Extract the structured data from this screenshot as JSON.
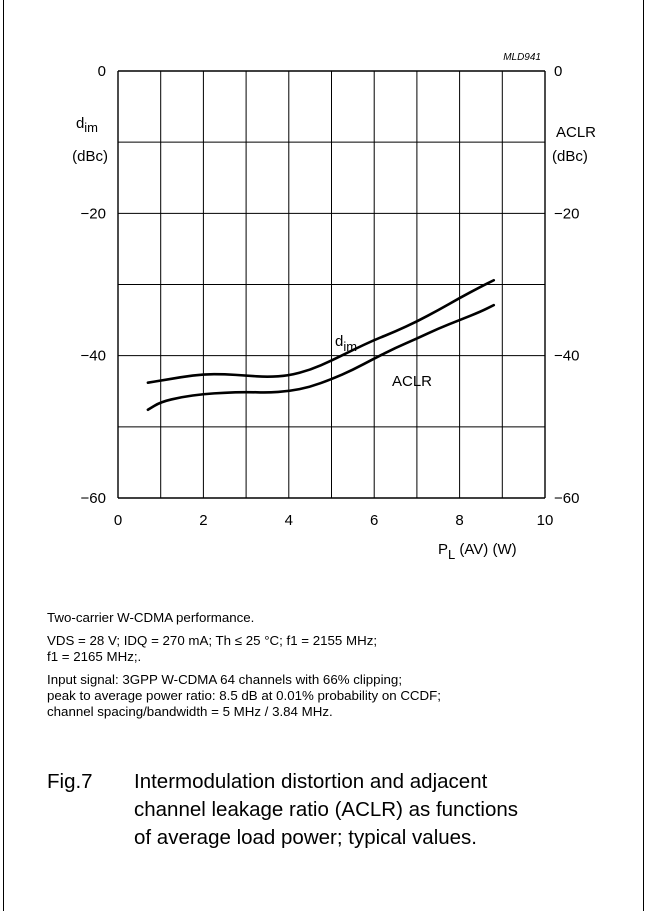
{
  "figure_code": "MLD941",
  "chart_data": {
    "type": "line",
    "x": [
      0.7,
      1,
      1.5,
      2,
      2.5,
      3,
      3.5,
      4,
      4.5,
      5,
      5.5,
      6,
      6.5,
      7,
      7.5,
      8,
      8.5,
      8.8
    ],
    "xlim": [
      0,
      10
    ],
    "ylim": [
      -60,
      0
    ],
    "xticks": [
      "0",
      "2",
      "4",
      "6",
      "8",
      "10"
    ],
    "yticks_left": [
      "0",
      "−20",
      "−40",
      "−60"
    ],
    "yticks_right": [
      "0",
      "−20",
      "−40",
      "−60"
    ],
    "xlabel": "P(AV) (W)",
    "xlabel_main": "P",
    "xlabel_sub": "L",
    "xlabel_rest": " (AV) (W)",
    "ylabel_left_main": "d",
    "ylabel_left_sub": "im",
    "ylabel_left_unit": "(dBc)",
    "ylabel_right": "ACLR",
    "ylabel_right_unit": "(dBc)",
    "grid": true,
    "series": [
      {
        "name": "dim",
        "label_main": "d",
        "label_sub": "im",
        "values": [
          -43.8,
          -43.5,
          -43.0,
          -42.6,
          -42.6,
          -42.8,
          -43.0,
          -42.8,
          -42.0,
          -40.7,
          -39.2,
          -37.8,
          -36.6,
          -35.2,
          -33.6,
          -31.9,
          -30.3,
          -29.4
        ]
      },
      {
        "name": "ACLR",
        "label_main": "ACLR",
        "values": [
          -47.6,
          -46.5,
          -45.8,
          -45.4,
          -45.2,
          -45.1,
          -45.2,
          -45.0,
          -44.4,
          -43.3,
          -42.0,
          -40.4,
          -38.9,
          -37.6,
          -36.2,
          -35.0,
          -33.8,
          -32.9
        ]
      }
    ]
  },
  "notes": {
    "line1": "Two-carrier W-CDMA performance.",
    "line2a": "VDS = 28 V; IDQ = 270 mA; Th ≤ 25 °C; f1 = 2155 MHz;",
    "line2b": "f1 = 2165 MHz;.",
    "line3a": "Input signal: 3GPP W-CDMA 64 channels with 66% clipping;",
    "line3b": "peak to average power ratio: 8.5 dB at 0.01% probability on CCDF;",
    "line3c": "channel spacing/bandwidth = 5 MHz / 3.84 MHz."
  },
  "caption": {
    "number": "Fig.7",
    "line1": "Intermodulation distortion and adjacent",
    "line2": "channel leakage ratio (ACLR) as functions",
    "line3": "of average load power; typical values."
  }
}
